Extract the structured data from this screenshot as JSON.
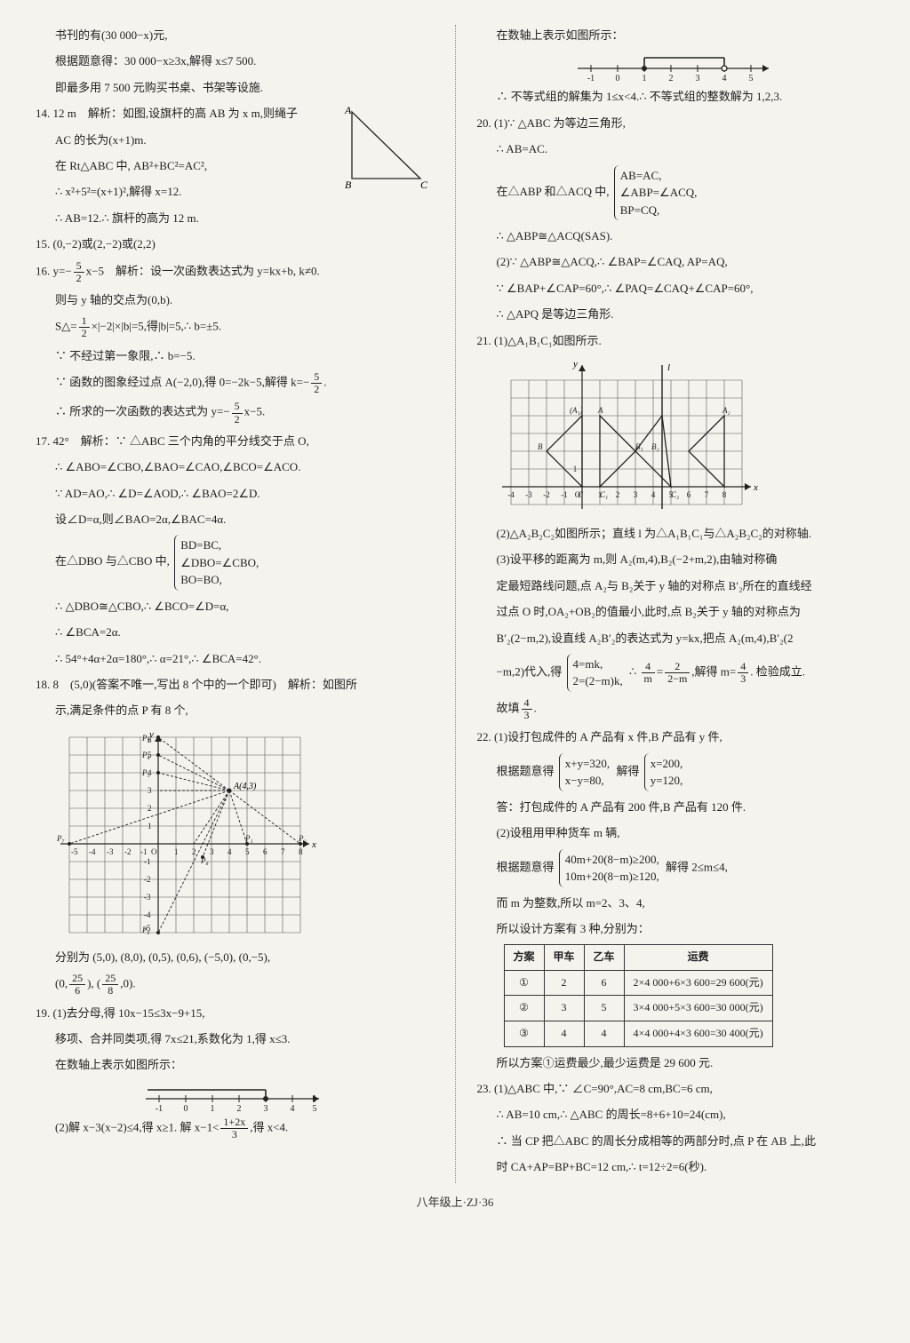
{
  "footer": "八年级上·ZJ·36",
  "left": {
    "p13a": "书刊的有(30 000−x)元,",
    "p13b": "根据题意得：30 000−x≥3x,解得 x≤7 500.",
    "p13c": "即最多用 7 500 元购买书桌、书架等设施.",
    "p14lead": "14. 12 m　解析：如图,设旗杆的高 AB 为 x m,则绳子",
    "p14a": "AC 的长为(x+1)m.",
    "p14b": "在 Rt△ABC 中, AB²+BC²=AC²,",
    "p14c": "∴ x²+5²=(x+1)²,解得 x=12.",
    "p14d": "∴ AB=12.∴ 旗杆的高为 12 m.",
    "p15": "15. (0,−2)或(2,−2)或(2,2)",
    "p16lead_pre": "16. y=−",
    "p16lead_post": "x−5　解析：设一次函数表达式为 y=kx+b, k≠0.",
    "p16a": "则与 y 轴的交点为(0,b).",
    "p16b_pre": "S△=",
    "p16b_mid": "×|−2|×|b|=5,得|b|=5,∴ b=±5.",
    "p16c": "∵ 不经过第一象限,∴ b=−5.",
    "p16d_pre": "∵ 函数的图象经过点 A(−2,0),得 0=−2k−5,解得 k=−",
    "p16d_post": ".",
    "p16e_pre": "∴ 所求的一次函数的表达式为 y=−",
    "p16e_post": "x−5.",
    "p17lead": "17. 42°　解析：∵ △ABC 三个内角的平分线交于点 O,",
    "p17a": "∴ ∠ABO=∠CBO,∠BAO=∠CAO,∠BCO=∠ACO.",
    "p17b": "∵ AD=AO,∴ ∠D=∠AOD,∴ ∠BAO=2∠D.",
    "p17c": "设∠D=α,则∠BAO=2α,∠BAC=4α.",
    "p17d_pre": "在△DBO 与△CBO 中,",
    "p17d_l1": "BD=BC,",
    "p17d_l2": "∠DBO=∠CBO,",
    "p17d_l3": "BO=BO,",
    "p17e": "∴ △DBO≅△CBO,∴ ∠BCO=∠D=α,",
    "p17f": "∴ ∠BCA=2α.",
    "p17g": "∴ 54°+4α+2α=180°,∴ α=21°,∴ ∠BCA=42°.",
    "p18lead": "18. 8　(5,0)(答案不唯一,写出 8 个中的一个即可)　解析：如图所",
    "p18a": "示,满足条件的点 P 有 8 个,",
    "p18b": "分别为 (5,0), (8,0), (0,5), (0,6), (−5,0), (0,−5),",
    "p18c_pre": "(0,",
    "p18c_mid": "), (",
    "p18c_post": ",0).",
    "p19lead": "19. (1)去分母,得 10x−15≤3x−9+15,",
    "p19a": "移项、合并同类项,得 7x≤21,系数化为 1,得 x≤3.",
    "p19b": "在数轴上表示如图所示：",
    "p19c_pre": "(2)解 x−3(x−2)≤4,得 x≥1. 解 x−1<",
    "p19c_post": ",得 x<4.",
    "frac52n": "5",
    "frac52d": "2",
    "frac12n": "1",
    "frac12d": "2",
    "frac256n": "25",
    "frac256d": "6",
    "frac258n": "25",
    "frac258d": "8",
    "frac12xn": "1+2x",
    "frac12xd": "3",
    "numberline1": {
      "ticks": [
        -1,
        0,
        1,
        2,
        3,
        4,
        5
      ],
      "filled_at": 3,
      "dir": "left"
    }
  },
  "right": {
    "r0": "在数轴上表示如图所示：",
    "numberline2": {
      "ticks": [
        -1,
        0,
        1,
        2,
        3,
        4,
        5
      ],
      "filled_at": 1,
      "open_at": 4
    },
    "r1": "∴ 不等式组的解集为 1≤x<4.∴ 不等式组的整数解为 1,2,3.",
    "p20lead": "20. (1)∵ △ABC 为等边三角形,",
    "p20a": "∴ AB=AC.",
    "p20b_pre": "在△ABP 和△ACQ 中,",
    "p20b_l1": "AB=AC,",
    "p20b_l2": "∠ABP=∠ACQ,",
    "p20b_l3": "BP=CQ,",
    "p20c": "∴ △ABP≅△ACQ(SAS).",
    "p20d": "(2)∵ △ABP≅△ACQ,∴ ∠BAP=∠CAQ, AP=AQ,",
    "p20e": "∵ ∠BAP+∠CAP=60°,∴ ∠PAQ=∠CAQ+∠CAP=60°,",
    "p20f": "∴ △APQ 是等边三角形.",
    "p21lead": "21. (1)△A₁B₁C₁如图所示.",
    "p21a": "(2)△A₂B₂C₂如图所示；直线 l 为△A₁B₁C₁与△A₂B₂C₂的对称轴.",
    "p21b": "(3)设平移的距离为 m,则 A₂(m,4),B₂(−2+m,2),由轴对称确",
    "p21c": "定最短路线问题,点 A₂与 B₂关于 y 轴的对称点 B′₂所在的直线经",
    "p21d": "过点 O 时,OA₂+OB₂的值最小,此时,点 B₂关于 y 轴的对称点为",
    "p21e": "B′₂(2−m,2),设直线 A₂B′₂的表达式为 y=kx,把点 A₂(m,4),B′₂(2",
    "p21f_pre": "−m,2)代入,得",
    "p21f_l1": "4=mk,",
    "p21f_l2": "2=(2−m)k,",
    "p21f_mid_pre": "∴ ",
    "p21f_mid_eq": "=",
    "p21f_mid2": ",解得 m=",
    "p21f_post": ". 检验成立.",
    "p21g_pre": "故填",
    "p21g_post": ".",
    "frac4mn": "4",
    "frac4md": "m",
    "frac22mn": "2",
    "frac22md": "2−m",
    "frac43n": "4",
    "frac43d": "3",
    "p22lead": "22. (1)设打包成件的 A 产品有 x 件,B 产品有 y 件,",
    "p22a_pre": "根据题意得",
    "p22a_l1": "x+y=320,",
    "p22a_l2": "x−y=80,",
    "p22a_mid": "解得",
    "p22a_r1": "x=200,",
    "p22a_r2": "y=120,",
    "p22b": "答：打包成件的 A 产品有 200 件,B 产品有 120 件.",
    "p22c": "(2)设租用甲种货车 m 辆,",
    "p22d_pre": "根据题意得",
    "p22d_l1": "40m+20(8−m)≥200,",
    "p22d_l2": "10m+20(8−m)≥120,",
    "p22d_post": "解得 2≤m≤4,",
    "p22e": "而 m 为整数,所以 m=2、3、4,",
    "p22f": "所以设计方案有 3 种,分别为：",
    "table": {
      "headers": [
        "方案",
        "甲车",
        "乙车",
        "运费"
      ],
      "rows": [
        [
          "①",
          "2",
          "6",
          "2×4 000+6×3 600=29 600(元)"
        ],
        [
          "②",
          "3",
          "5",
          "3×4 000+5×3 600=30 000(元)"
        ],
        [
          "③",
          "4",
          "4",
          "4×4 000+4×3 600=30 400(元)"
        ]
      ]
    },
    "p22g": "所以方案①运费最少,最少运费是 29 600 元.",
    "p23lead": "23. (1)△ABC 中,∵ ∠C=90°,AC=8 cm,BC=6 cm,",
    "p23a": "∴ AB=10 cm,∴ △ABC 的周长=8+6+10=24(cm),",
    "p23b": "∴ 当 CP 把△ABC 的周长分成相等的两部分时,点 P 在 AB 上,此",
    "p23c": "时 CA+AP=BP+BC=12 cm,∴ t=12÷2=6(秒)."
  },
  "colors": {
    "text": "#222222",
    "bg": "#f5f3ed",
    "line": "#333333",
    "grid": "#555555"
  }
}
